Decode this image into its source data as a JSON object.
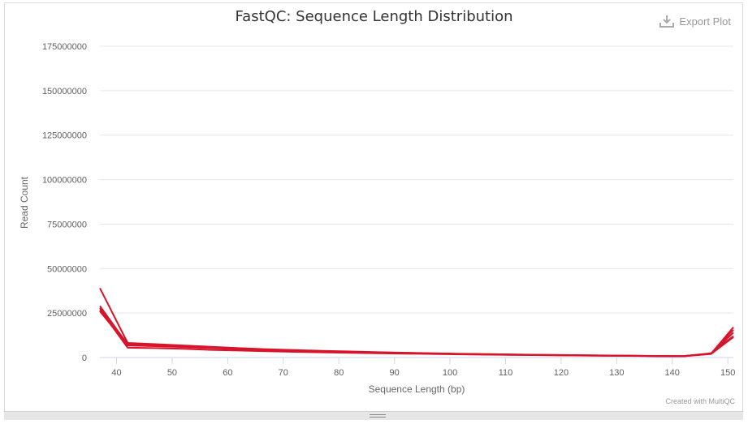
{
  "header": {
    "title": "FastQC: Sequence Length Distribution",
    "export_label": "Export Plot",
    "credit": "Created with MultiQC"
  },
  "colors": {
    "series": "#d7142b",
    "grid": "#e6e6e6",
    "axis": "#ccd6eb"
  },
  "chart_data": {
    "type": "line",
    "title": "FastQC: Sequence Length Distribution",
    "xlabel": "Sequence Length (bp)",
    "ylabel": "Read Count",
    "xlim": [
      37,
      151
    ],
    "ylim": [
      0,
      175000000
    ],
    "x_ticks": [
      "40",
      "50",
      "60",
      "70",
      "80",
      "90",
      "100",
      "110",
      "120",
      "130",
      "140",
      "150"
    ],
    "y_ticks": [
      "0",
      "25000000",
      "50000000",
      "75000000",
      "100000000",
      "125000000",
      "150000000",
      "175000000"
    ],
    "grid": true,
    "legend": "none",
    "x": [
      37,
      42,
      47,
      52,
      57,
      62,
      67,
      72,
      77,
      82,
      87,
      92,
      97,
      102,
      107,
      112,
      117,
      122,
      127,
      132,
      137,
      142,
      147,
      151
    ],
    "series": [
      {
        "values": [
          39000000,
          8200000,
          7500000,
          6800000,
          6000000,
          5300000,
          4700000,
          4200000,
          3800000,
          3400000,
          3000000,
          2700000,
          2400000,
          2100000,
          1900000,
          1700000,
          1500000,
          1350000,
          1200000,
          1050000,
          900000,
          800000,
          2400000,
          12000000
        ]
      },
      {
        "values": [
          28000000,
          7600000,
          7000000,
          6400000,
          5700000,
          5000000,
          4500000,
          4000000,
          3600000,
          3200000,
          2900000,
          2600000,
          2300000,
          2000000,
          1800000,
          1600000,
          1450000,
          1300000,
          1150000,
          1000000,
          880000,
          780000,
          2200000,
          17000000
        ]
      },
      {
        "values": [
          26000000,
          6800000,
          6400000,
          5900000,
          5300000,
          4700000,
          4200000,
          3800000,
          3400000,
          3000000,
          2700000,
          2400000,
          2150000,
          1900000,
          1700000,
          1500000,
          1350000,
          1200000,
          1050000,
          950000,
          830000,
          740000,
          2100000,
          14000000
        ]
      },
      {
        "values": [
          27000000,
          5500000,
          5300000,
          4900000,
          4300000,
          3900000,
          3500000,
          3200000,
          2900000,
          2600000,
          2400000,
          2200000,
          2000000,
          1800000,
          1600000,
          1450000,
          1300000,
          1150000,
          1000000,
          900000,
          800000,
          700000,
          2000000,
          11500000
        ]
      },
      {
        "values": [
          29000000,
          7200000,
          6700000,
          6200000,
          5500000,
          4800000,
          4300000,
          3900000,
          3500000,
          3100000,
          2800000,
          2500000,
          2250000,
          2000000,
          1800000,
          1600000,
          1420000,
          1270000,
          1120000,
          980000,
          860000,
          760000,
          2300000,
          15500000
        ]
      }
    ]
  }
}
